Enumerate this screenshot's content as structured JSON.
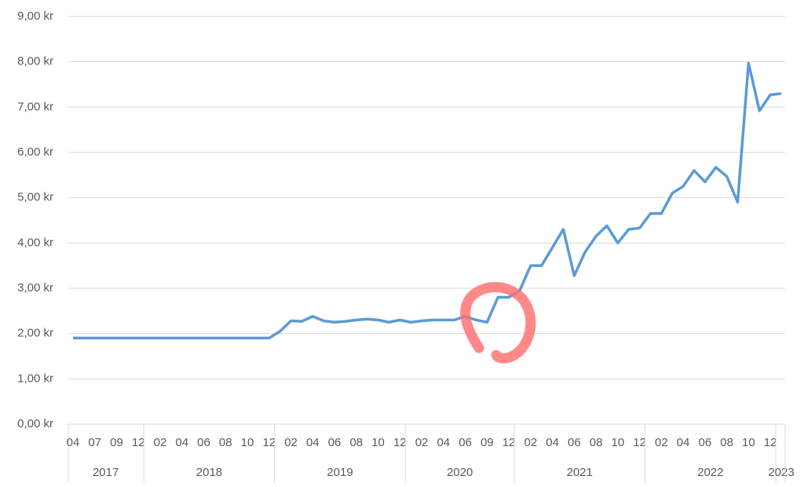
{
  "chart_data": {
    "type": "line",
    "ylim": [
      0,
      9
    ],
    "yticks": [
      {
        "value": 0,
        "label": "0,00 kr"
      },
      {
        "value": 1,
        "label": "1,00 kr"
      },
      {
        "value": 2,
        "label": "2,00 kr"
      },
      {
        "value": 3,
        "label": "3,00 kr"
      },
      {
        "value": 4,
        "label": "4,00 kr"
      },
      {
        "value": 5,
        "label": "5,00 kr"
      },
      {
        "value": 6,
        "label": "6,00 kr"
      },
      {
        "value": 7,
        "label": "7,00 kr"
      },
      {
        "value": 8,
        "label": "8,00 kr"
      },
      {
        "value": 9,
        "label": "9,00 kr"
      }
    ],
    "grid": true,
    "years": [
      {
        "name": "2017",
        "months": [
          "04",
          null,
          "07",
          null,
          "09",
          null,
          "12"
        ]
      },
      {
        "name": "2018",
        "months": [
          null,
          "02",
          null,
          "04",
          null,
          "06",
          null,
          "08",
          null,
          "10",
          null,
          "12"
        ]
      },
      {
        "name": "2019",
        "months": [
          null,
          "02",
          null,
          "04",
          null,
          "06",
          null,
          "08",
          null,
          "10",
          null,
          "12"
        ]
      },
      {
        "name": "2020",
        "months": [
          null,
          "02",
          null,
          "04",
          null,
          "06",
          null,
          "09",
          null,
          "12"
        ]
      },
      {
        "name": "2021",
        "months": [
          null,
          "02",
          null,
          "04",
          null,
          "06",
          null,
          "08",
          null,
          "10",
          null,
          "12"
        ]
      },
      {
        "name": "2022",
        "months": [
          null,
          "02",
          null,
          "04",
          null,
          "06",
          null,
          "08",
          null,
          "10",
          null,
          "12"
        ]
      },
      {
        "name": "2023",
        "months": [
          null
        ]
      }
    ],
    "color": "#5b9bd5",
    "values": [
      1.9,
      1.9,
      1.9,
      1.9,
      1.9,
      1.9,
      1.9,
      1.9,
      1.9,
      1.9,
      1.9,
      1.9,
      1.9,
      1.9,
      1.9,
      1.9,
      1.9,
      1.9,
      1.9,
      2.05,
      2.28,
      2.27,
      2.38,
      2.28,
      2.25,
      2.27,
      2.3,
      2.32,
      2.3,
      2.25,
      2.3,
      2.25,
      2.28,
      2.3,
      2.3,
      2.3,
      2.38,
      2.3,
      2.25,
      2.8,
      2.8,
      2.95,
      3.5,
      3.5,
      3.9,
      4.3,
      3.28,
      3.8,
      4.15,
      4.38,
      4.0,
      4.3,
      4.33,
      4.65,
      4.65,
      5.1,
      5.25,
      5.6,
      5.35,
      5.67,
      5.47,
      4.9,
      7.97,
      6.92,
      7.27,
      7.3
    ]
  }
}
